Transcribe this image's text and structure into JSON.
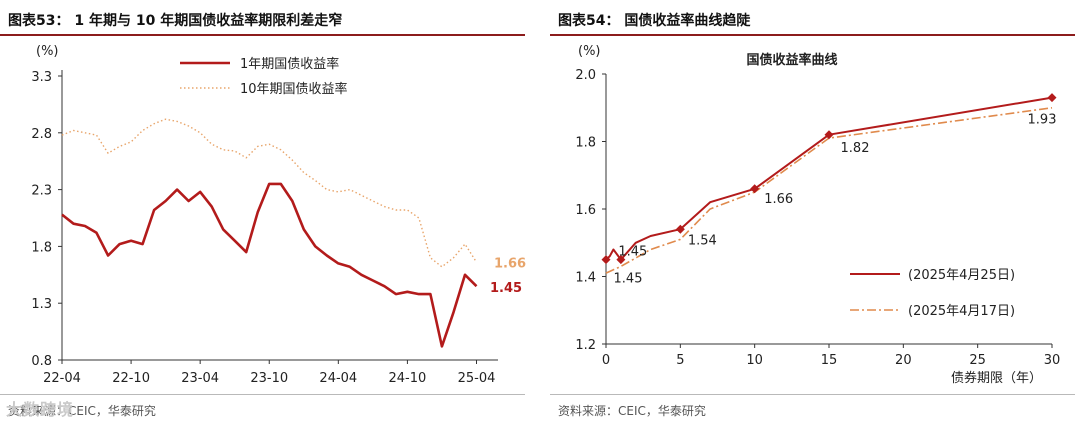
{
  "left": {
    "figure_title": "图表53： 1 年期与 10 年期国债收益率期限利差走窄",
    "source": "资料来源：CEIC，华泰研究",
    "watermark": "大数跨境",
    "chart_data": {
      "type": "line",
      "ylabel": "(%)",
      "ylim": [
        0.8,
        3.3
      ],
      "yticks": [
        "3.3",
        "2.8",
        "2.3",
        "1.8",
        "1.3",
        "0.8"
      ],
      "xticks": [
        "22-04",
        "22-10",
        "23-04",
        "23-10",
        "24-04",
        "24-10",
        "25-04"
      ],
      "grid": false,
      "legend": "top-center",
      "colors": {
        "one_year": "#b31b1b",
        "ten_year": "#e8a56b"
      },
      "series": [
        {
          "name": "1年期国债收益率",
          "style": "solid",
          "points": [
            [
              "22-04",
              2.08
            ],
            [
              "22-05",
              2.0
            ],
            [
              "22-06",
              1.98
            ],
            [
              "22-07",
              1.92
            ],
            [
              "22-08",
              1.72
            ],
            [
              "22-09",
              1.82
            ],
            [
              "22-10",
              1.85
            ],
            [
              "22-11",
              1.82
            ],
            [
              "22-12",
              2.12
            ],
            [
              "23-01",
              2.2
            ],
            [
              "23-02",
              2.3
            ],
            [
              "23-03",
              2.2
            ],
            [
              "23-04",
              2.28
            ],
            [
              "23-05",
              2.15
            ],
            [
              "23-06",
              1.95
            ],
            [
              "23-07",
              1.85
            ],
            [
              "23-08",
              1.75
            ],
            [
              "23-09",
              2.1
            ],
            [
              "23-10",
              2.35
            ],
            [
              "23-11",
              2.35
            ],
            [
              "23-12",
              2.2
            ],
            [
              "24-01",
              1.95
            ],
            [
              "24-02",
              1.8
            ],
            [
              "24-03",
              1.72
            ],
            [
              "24-04",
              1.65
            ],
            [
              "24-05",
              1.62
            ],
            [
              "24-06",
              1.55
            ],
            [
              "24-07",
              1.5
            ],
            [
              "24-08",
              1.45
            ],
            [
              "24-09",
              1.38
            ],
            [
              "24-10",
              1.4
            ],
            [
              "24-11",
              1.38
            ],
            [
              "24-12",
              1.38
            ],
            [
              "25-01",
              0.92
            ],
            [
              "25-02",
              1.22
            ],
            [
              "25-03",
              1.55
            ],
            [
              "25-04",
              1.45
            ]
          ]
        },
        {
          "name": "10年期国债收益率",
          "style": "dotted",
          "points": [
            [
              "22-04",
              2.78
            ],
            [
              "22-05",
              2.82
            ],
            [
              "22-06",
              2.8
            ],
            [
              "22-07",
              2.78
            ],
            [
              "22-08",
              2.62
            ],
            [
              "22-09",
              2.68
            ],
            [
              "22-10",
              2.72
            ],
            [
              "22-11",
              2.82
            ],
            [
              "22-12",
              2.88
            ],
            [
              "23-01",
              2.92
            ],
            [
              "23-02",
              2.9
            ],
            [
              "23-03",
              2.86
            ],
            [
              "23-04",
              2.8
            ],
            [
              "23-05",
              2.7
            ],
            [
              "23-06",
              2.65
            ],
            [
              "23-07",
              2.64
            ],
            [
              "23-08",
              2.58
            ],
            [
              "23-09",
              2.68
            ],
            [
              "23-10",
              2.7
            ],
            [
              "23-11",
              2.65
            ],
            [
              "23-12",
              2.56
            ],
            [
              "24-01",
              2.45
            ],
            [
              "24-02",
              2.38
            ],
            [
              "24-03",
              2.3
            ],
            [
              "24-04",
              2.28
            ],
            [
              "24-05",
              2.3
            ],
            [
              "24-06",
              2.25
            ],
            [
              "24-07",
              2.2
            ],
            [
              "24-08",
              2.15
            ],
            [
              "24-09",
              2.12
            ],
            [
              "24-10",
              2.12
            ],
            [
              "24-11",
              2.05
            ],
            [
              "24-12",
              1.7
            ],
            [
              "25-01",
              1.62
            ],
            [
              "25-02",
              1.7
            ],
            [
              "25-03",
              1.82
            ],
            [
              "25-04",
              1.66
            ]
          ]
        }
      ],
      "end_labels": [
        {
          "series": "10年期国债收益率",
          "text": "1.66"
        },
        {
          "series": "1年期国债收益率",
          "text": "1.45"
        }
      ]
    }
  },
  "right": {
    "figure_title": "图表54： 国债收益率曲线趋陡",
    "source": "资料来源：CEIC，华泰研究",
    "chart_data": {
      "type": "line",
      "title": "国债收益率曲线",
      "ylabel": "(%)",
      "xlabel": "债券期限（年）",
      "ylim": [
        1.2,
        2.0
      ],
      "xlim": [
        0,
        30
      ],
      "yticks": [
        "2.0",
        "1.8",
        "1.6",
        "1.4",
        "1.2"
      ],
      "xticks": [
        "0",
        "5",
        "10",
        "15",
        "20",
        "25",
        "30"
      ],
      "grid": false,
      "legend": "bottom-right",
      "colors": {
        "apr25": "#b31b1b",
        "apr17": "#e08a4c"
      },
      "series": [
        {
          "name": "(2025年4月25日)",
          "style": "solid",
          "markers": true,
          "points": [
            [
              0,
              1.45
            ],
            [
              0.25,
              1.46
            ],
            [
              0.5,
              1.48
            ],
            [
              1,
              1.45
            ],
            [
              2,
              1.5
            ],
            [
              3,
              1.52
            ],
            [
              5,
              1.54
            ],
            [
              7,
              1.62
            ],
            [
              10,
              1.66
            ],
            [
              15,
              1.82
            ],
            [
              30,
              1.93
            ]
          ],
          "marker_points": [
            [
              0,
              1.45
            ],
            [
              1,
              1.45
            ],
            [
              5,
              1.54
            ],
            [
              10,
              1.66
            ],
            [
              15,
              1.82
            ],
            [
              30,
              1.93
            ]
          ]
        },
        {
          "name": "(2025年4月17日)",
          "style": "dashdot",
          "markers": false,
          "points": [
            [
              0,
              1.41
            ],
            [
              1,
              1.43
            ],
            [
              3,
              1.48
            ],
            [
              5,
              1.51
            ],
            [
              7,
              1.6
            ],
            [
              10,
              1.65
            ],
            [
              15,
              1.81
            ],
            [
              20,
              1.84
            ],
            [
              30,
              1.9
            ]
          ]
        }
      ],
      "data_labels": [
        {
          "x": 0,
          "y": 1.45,
          "text": "1.45"
        },
        {
          "x": 1,
          "y": 1.45,
          "text": "1.45"
        },
        {
          "x": 5,
          "y": 1.54,
          "text": "1.54"
        },
        {
          "x": 10,
          "y": 1.66,
          "text": "1.66"
        },
        {
          "x": 15,
          "y": 1.82,
          "text": "1.82"
        },
        {
          "x": 30,
          "y": 1.93,
          "text": "1.93"
        }
      ]
    }
  }
}
